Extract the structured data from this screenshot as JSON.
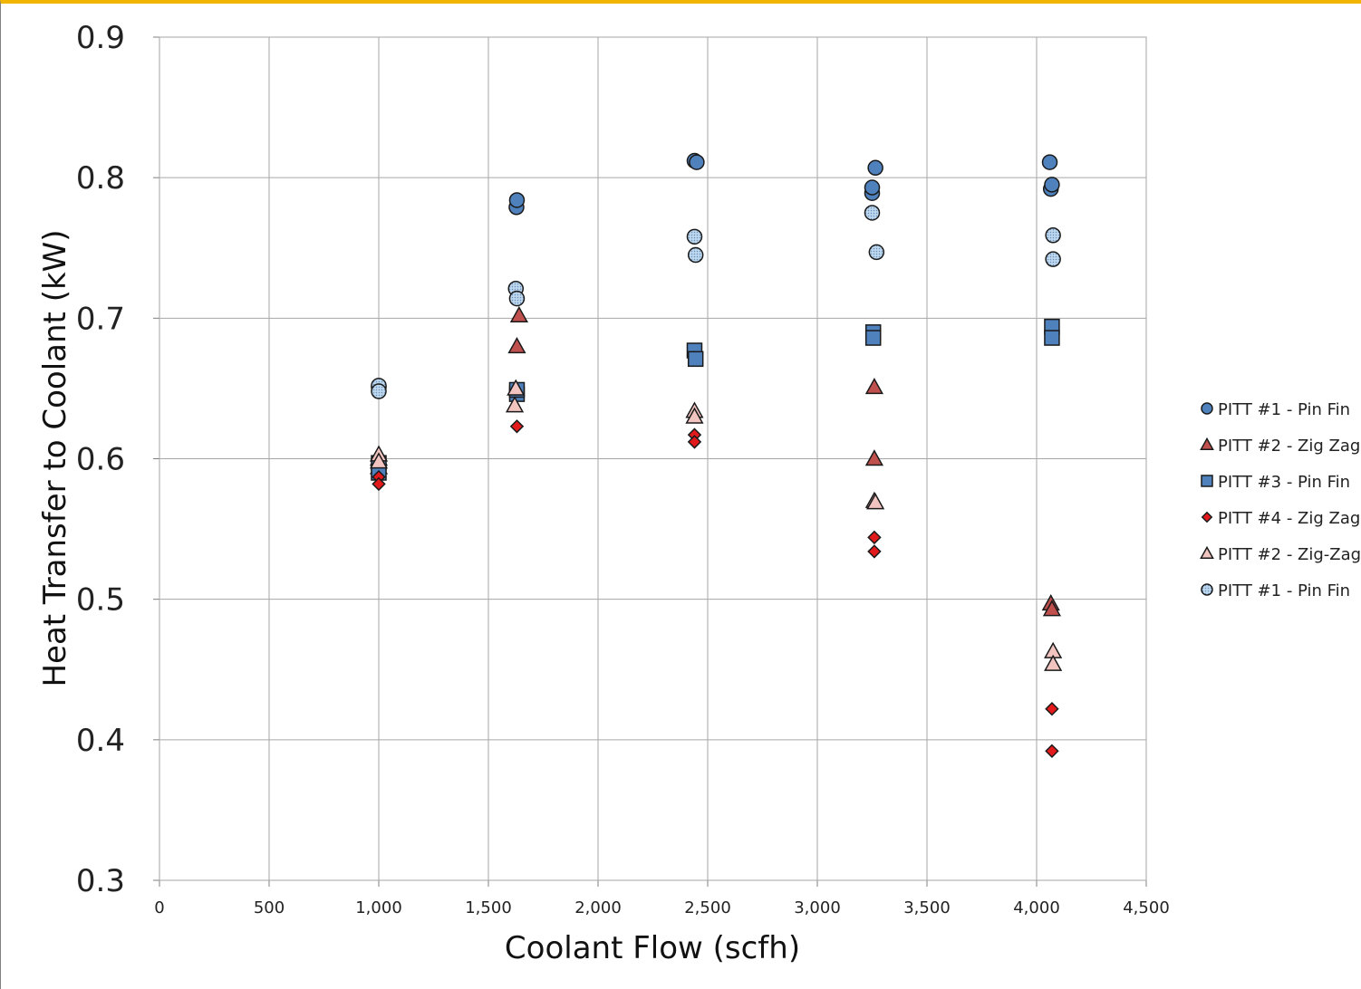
{
  "chart_data": {
    "type": "scatter",
    "title": "",
    "xlabel": "Coolant Flow (scfh)",
    "ylabel": "Heat Transfer to Coolant  (kW)",
    "xlim": [
      0,
      4500
    ],
    "ylim": [
      0.3,
      0.9
    ],
    "x_ticks": [
      "0",
      "500",
      "1,000",
      "1,500",
      "2,000",
      "2,500",
      "3,000",
      "3,500",
      "4,000",
      "4,500"
    ],
    "y_ticks": [
      "0.3",
      "0.4",
      "0.5",
      "0.6",
      "0.7",
      "0.8",
      "0.9"
    ],
    "grid": true,
    "legend_position": "right",
    "series": [
      {
        "name": "PITT #1 - Pin Fin",
        "marker": "circle",
        "fill": "#4f81bd",
        "points": [
          [
            1000,
            0.651
          ],
          [
            1628,
            0.779
          ],
          [
            1630,
            0.784
          ],
          [
            2440,
            0.812
          ],
          [
            2450,
            0.811
          ],
          [
            3250,
            0.789
          ],
          [
            3250,
            0.793
          ],
          [
            3265,
            0.807
          ],
          [
            4060,
            0.811
          ],
          [
            4065,
            0.792
          ],
          [
            4070,
            0.795
          ]
        ]
      },
      {
        "name": "PITT #2 - Zig Zag",
        "marker": "triangle",
        "fill": "#c0504d",
        "points": [
          [
            1000,
            0.6
          ],
          [
            1000,
            0.594
          ],
          [
            1630,
            0.68
          ],
          [
            1640,
            0.702
          ],
          [
            3260,
            0.651
          ],
          [
            3260,
            0.6
          ],
          [
            4065,
            0.497
          ],
          [
            4070,
            0.493
          ]
        ]
      },
      {
        "name": "PITT #3 - Pin Fin",
        "marker": "square",
        "fill": "#4f81bd",
        "points": [
          [
            1000,
            0.597
          ],
          [
            1000,
            0.59
          ],
          [
            1630,
            0.646
          ],
          [
            1630,
            0.649
          ],
          [
            2440,
            0.677
          ],
          [
            2445,
            0.671
          ],
          [
            3255,
            0.69
          ],
          [
            3255,
            0.686
          ],
          [
            4070,
            0.694
          ],
          [
            4070,
            0.686
          ]
        ]
      },
      {
        "name": "PITT #4 - Zig Zag",
        "marker": "diamond",
        "fill": "#e31a1c",
        "points": [
          [
            1000,
            0.587
          ],
          [
            1000,
            0.582
          ],
          [
            1630,
            0.623
          ],
          [
            2440,
            0.617
          ],
          [
            2440,
            0.612
          ],
          [
            3260,
            0.544
          ],
          [
            3260,
            0.534
          ],
          [
            4070,
            0.422
          ],
          [
            4070,
            0.392
          ]
        ]
      },
      {
        "name": "PITT #2 - Zig-Zag",
        "marker": "triangle",
        "fill": "#f2c4c0",
        "points": [
          [
            1000,
            0.603
          ],
          [
            1000,
            0.598
          ],
          [
            1620,
            0.638
          ],
          [
            1625,
            0.65
          ],
          [
            2440,
            0.634
          ],
          [
            2440,
            0.63
          ],
          [
            3260,
            0.57
          ],
          [
            3265,
            0.569
          ],
          [
            4075,
            0.463
          ],
          [
            4075,
            0.454
          ]
        ]
      },
      {
        "name": "PITT #1 - Pin Fin",
        "marker": "circle-dotted",
        "fill": "#bdd7ee",
        "points": [
          [
            1000,
            0.652
          ],
          [
            1000,
            0.648
          ],
          [
            1625,
            0.721
          ],
          [
            1630,
            0.714
          ],
          [
            2440,
            0.758
          ],
          [
            2445,
            0.745
          ],
          [
            3250,
            0.775
          ],
          [
            3270,
            0.747
          ],
          [
            4075,
            0.759
          ],
          [
            4075,
            0.742
          ]
        ]
      }
    ]
  }
}
